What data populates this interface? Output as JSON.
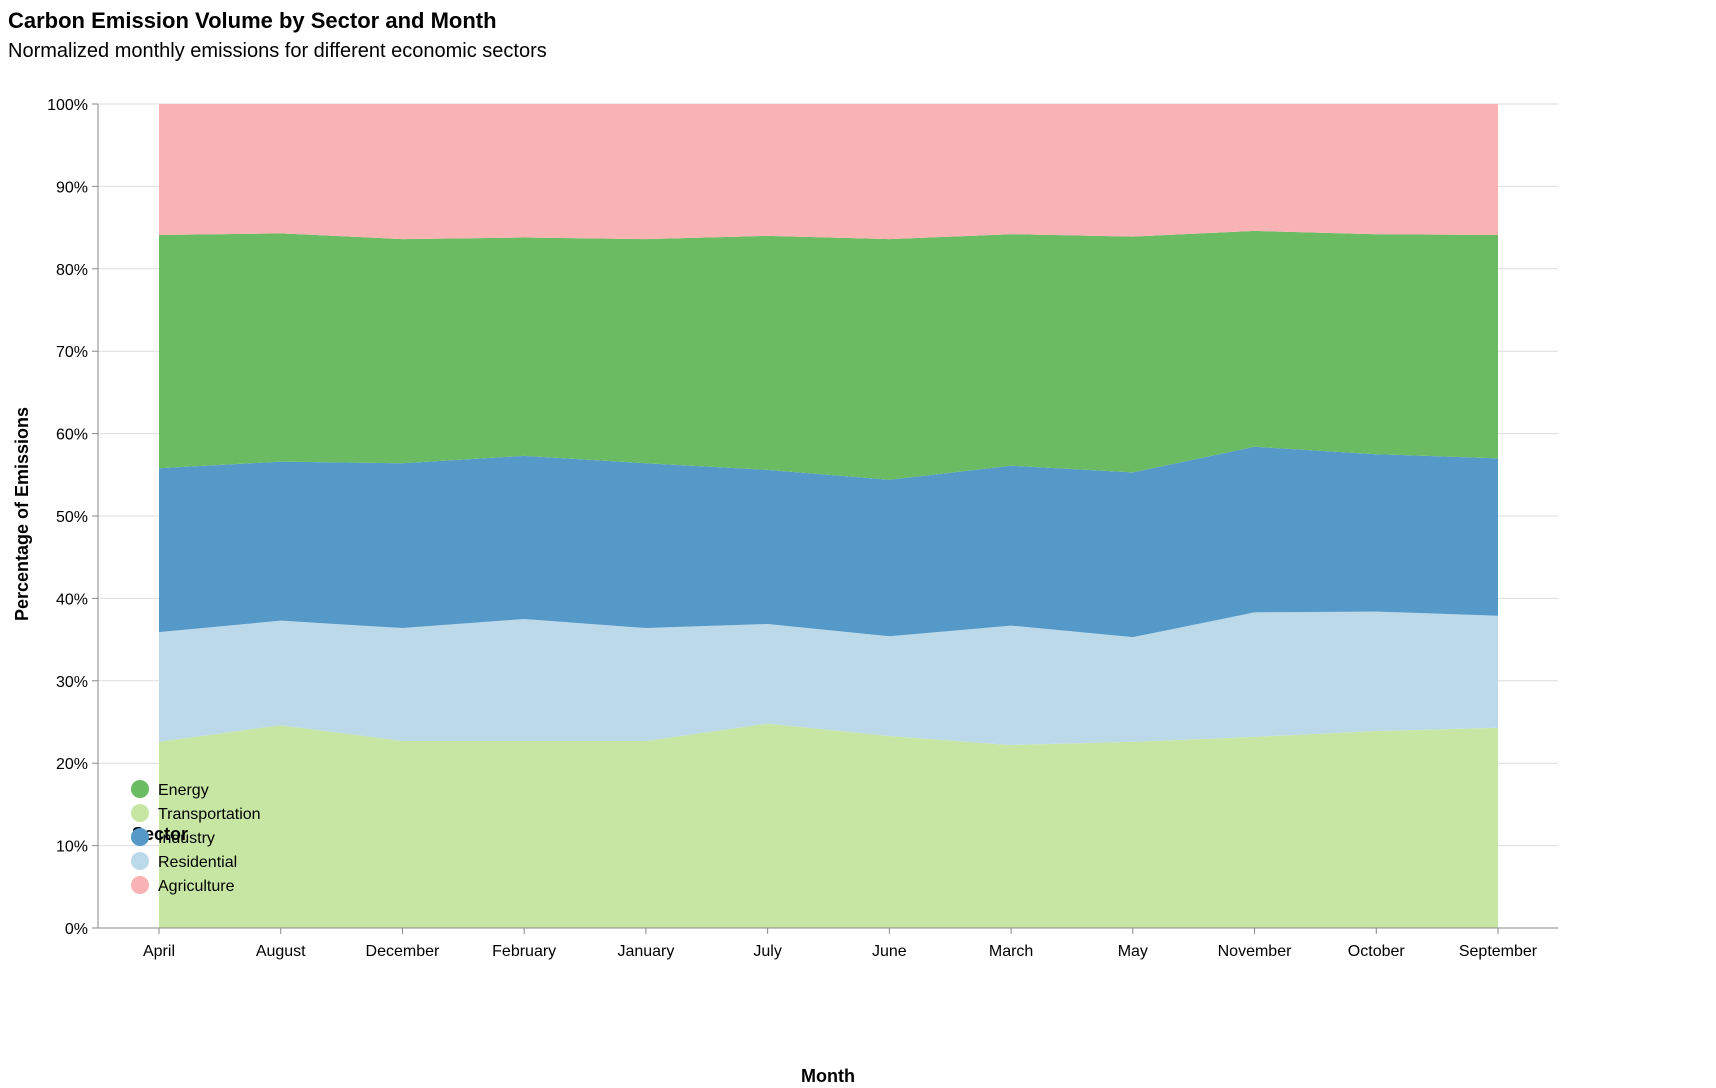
{
  "chart_data": {
    "type": "area",
    "stacking": "normalized",
    "title": "Carbon Emission Volume by Sector and Month",
    "subtitle": "Normalized monthly emissions for different economic sectors",
    "xlabel": "Month",
    "ylabel": "Percentage of Emissions",
    "ylim": [
      0,
      1
    ],
    "y_ticks": [
      "0%",
      "10%",
      "20%",
      "30%",
      "40%",
      "50%",
      "60%",
      "70%",
      "80%",
      "90%",
      "100%"
    ],
    "grid": true,
    "legend_title": "Sector",
    "legend_position": "bottom-left",
    "categories": [
      "April",
      "August",
      "December",
      "February",
      "January",
      "July",
      "June",
      "March",
      "May",
      "November",
      "October",
      "September"
    ],
    "series": [
      {
        "name": "Transportation",
        "color": "#c7e6a4",
        "values": [
          0.226,
          0.246,
          0.227,
          0.227,
          0.227,
          0.248,
          0.233,
          0.222,
          0.226,
          0.232,
          0.239,
          0.243
        ]
      },
      {
        "name": "Residential",
        "color": "#bcd9ea",
        "values": [
          0.133,
          0.127,
          0.137,
          0.148,
          0.137,
          0.121,
          0.121,
          0.145,
          0.127,
          0.151,
          0.145,
          0.136
        ]
      },
      {
        "name": "Industry",
        "color": "#5599c8",
        "values": [
          0.199,
          0.193,
          0.2,
          0.198,
          0.2,
          0.187,
          0.19,
          0.194,
          0.2,
          0.201,
          0.191,
          0.191
        ]
      },
      {
        "name": "Energy",
        "color": "#6bbb63",
        "values": [
          0.283,
          0.277,
          0.272,
          0.265,
          0.272,
          0.284,
          0.292,
          0.281,
          0.286,
          0.262,
          0.267,
          0.271
        ]
      },
      {
        "name": "Agriculture",
        "color": "#fab3b4",
        "values": [
          0.159,
          0.157,
          0.164,
          0.162,
          0.164,
          0.16,
          0.164,
          0.158,
          0.161,
          0.154,
          0.158,
          0.159
        ]
      }
    ],
    "legend_order": [
      "Energy",
      "Transportation",
      "Industry",
      "Residential",
      "Agriculture"
    ]
  }
}
